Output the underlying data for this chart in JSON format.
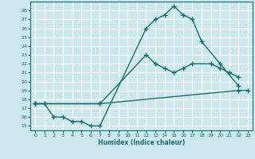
{
  "xlabel": "Humidex (Indice chaleur)",
  "bg_color": "#cce8ee",
  "grid_color": "#ffffff",
  "line_color": "#1a6e6a",
  "xlim": [
    -0.5,
    23.5
  ],
  "ylim": [
    14.5,
    29
  ],
  "xticks": [
    0,
    1,
    2,
    3,
    4,
    5,
    6,
    7,
    8,
    9,
    10,
    11,
    12,
    13,
    14,
    15,
    16,
    17,
    18,
    19,
    20,
    21,
    22,
    23
  ],
  "yticks": [
    15,
    16,
    17,
    18,
    19,
    20,
    21,
    22,
    23,
    24,
    25,
    26,
    27,
    28
  ],
  "line1": {
    "x": [
      0,
      1,
      2,
      3,
      4,
      5,
      6,
      7,
      12,
      13,
      14,
      15,
      16,
      17,
      18,
      20,
      22
    ],
    "y": [
      17.5,
      17.5,
      16,
      16,
      15.5,
      15.5,
      15,
      15,
      26,
      27,
      27.5,
      28.5,
      27.5,
      27,
      24.5,
      22,
      19.5
    ]
  },
  "line2": {
    "x": [
      0,
      7,
      12,
      13,
      14,
      15,
      16,
      17,
      19,
      20,
      21,
      22
    ],
    "y": [
      17.5,
      17.5,
      23,
      22,
      21.5,
      21,
      21.5,
      22,
      22,
      21.5,
      21,
      20.5
    ]
  },
  "line3": {
    "x": [
      0,
      7,
      22,
      23
    ],
    "y": [
      17.5,
      17.5,
      19,
      19
    ]
  }
}
